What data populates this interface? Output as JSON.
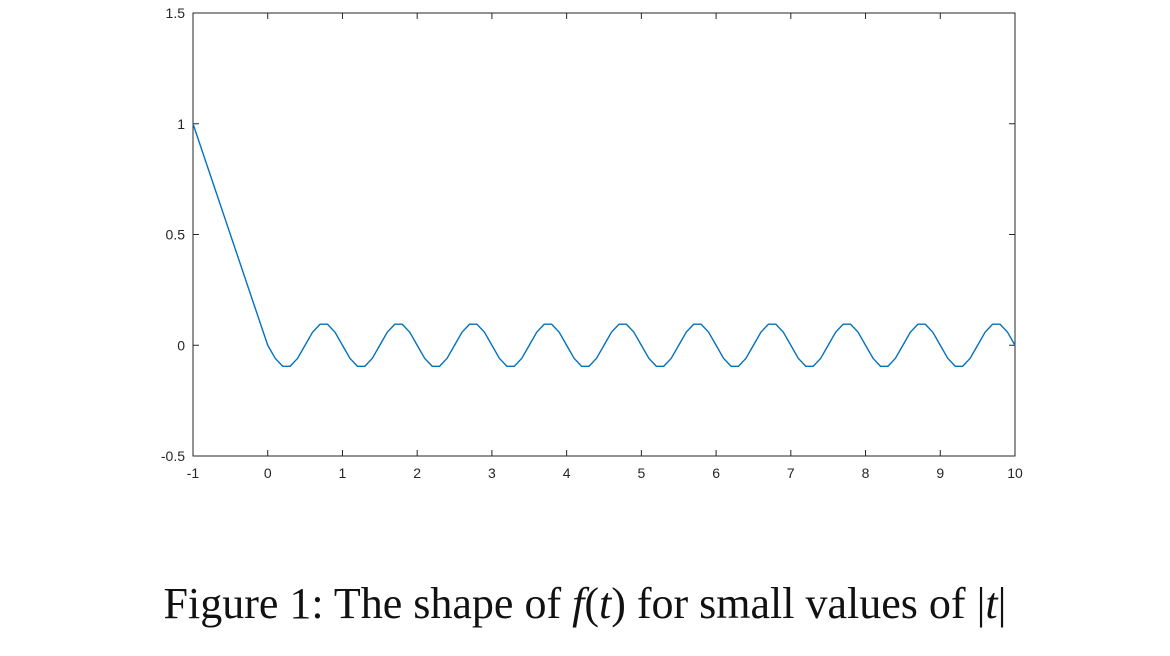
{
  "chart_data": {
    "type": "line",
    "title": "",
    "xlabel": "",
    "ylabel": "",
    "xlim": [
      -1,
      10
    ],
    "ylim": [
      -0.5,
      1.5
    ],
    "x_ticks": [
      "-1",
      "0",
      "1",
      "2",
      "3",
      "4",
      "5",
      "6",
      "7",
      "8",
      "9",
      "10"
    ],
    "y_ticks": [
      "-0.5",
      "0",
      "0.5",
      "1",
      "1.5"
    ],
    "grid": false,
    "series": [
      {
        "color": "#0072BD",
        "x": [
          -1,
          0,
          0.1,
          0.2,
          0.3,
          0.4,
          0.5,
          0.6,
          0.7,
          0.8,
          0.9,
          1,
          1.1,
          1.2,
          1.3,
          1.4,
          1.5,
          1.6,
          1.7,
          1.8,
          1.9,
          2,
          2.1,
          2.2,
          2.3,
          2.4,
          2.5,
          2.6,
          2.7,
          2.8,
          2.9,
          3,
          3.1,
          3.2,
          3.3,
          3.4,
          3.5,
          3.6,
          3.7,
          3.8,
          3.9,
          4,
          4.1,
          4.2,
          4.3,
          4.4,
          4.5,
          4.6,
          4.7,
          4.8,
          4.9,
          5,
          5.1,
          5.2,
          5.3,
          5.4,
          5.5,
          5.6,
          5.7,
          5.8,
          5.9,
          6,
          6.1,
          6.2,
          6.3,
          6.4,
          6.5,
          6.6,
          6.7,
          6.8,
          6.9,
          7,
          7.1,
          7.2,
          7.3,
          7.4,
          7.5,
          7.6,
          7.7,
          7.8,
          7.9,
          8,
          8.1,
          8.2,
          8.3,
          8.4,
          8.5,
          8.6,
          8.7,
          8.8,
          8.9,
          9,
          9.1,
          9.2,
          9.3,
          9.4,
          9.5,
          9.6,
          9.7,
          9.8,
          9.9,
          10
        ],
        "y": [
          1,
          0,
          -0.059,
          -0.095,
          -0.095,
          -0.059,
          0,
          0.059,
          0.095,
          0.095,
          0.059,
          0,
          -0.059,
          -0.095,
          -0.095,
          -0.059,
          0,
          0.059,
          0.095,
          0.095,
          0.059,
          0,
          -0.059,
          -0.095,
          -0.095,
          -0.059,
          0,
          0.059,
          0.095,
          0.095,
          0.059,
          0,
          -0.059,
          -0.095,
          -0.095,
          -0.059,
          0,
          0.059,
          0.095,
          0.095,
          0.059,
          0,
          -0.059,
          -0.095,
          -0.095,
          -0.059,
          0,
          0.059,
          0.095,
          0.095,
          0.059,
          0,
          -0.059,
          -0.095,
          -0.095,
          -0.059,
          0,
          0.059,
          0.095,
          0.095,
          0.059,
          0,
          -0.059,
          -0.095,
          -0.095,
          -0.059,
          0,
          0.059,
          0.095,
          0.095,
          0.059,
          0,
          -0.059,
          -0.095,
          -0.095,
          -0.059,
          0,
          0.059,
          0.095,
          0.095,
          0.059,
          0,
          -0.059,
          -0.095,
          -0.095,
          -0.059,
          0,
          0.059,
          0.095,
          0.095,
          0.059,
          0,
          -0.059,
          -0.095,
          -0.095,
          -0.059,
          0,
          0.059,
          0.095,
          0.095,
          0.059,
          0
        ]
      }
    ]
  },
  "caption": {
    "prefix": "Figure 1:  The shape of ",
    "math1": "f",
    "paren1": "(",
    "math2": "t",
    "paren2": ")",
    "middle": " for small values of ",
    "bar1": "|",
    "math3": "t",
    "bar2": "|"
  }
}
